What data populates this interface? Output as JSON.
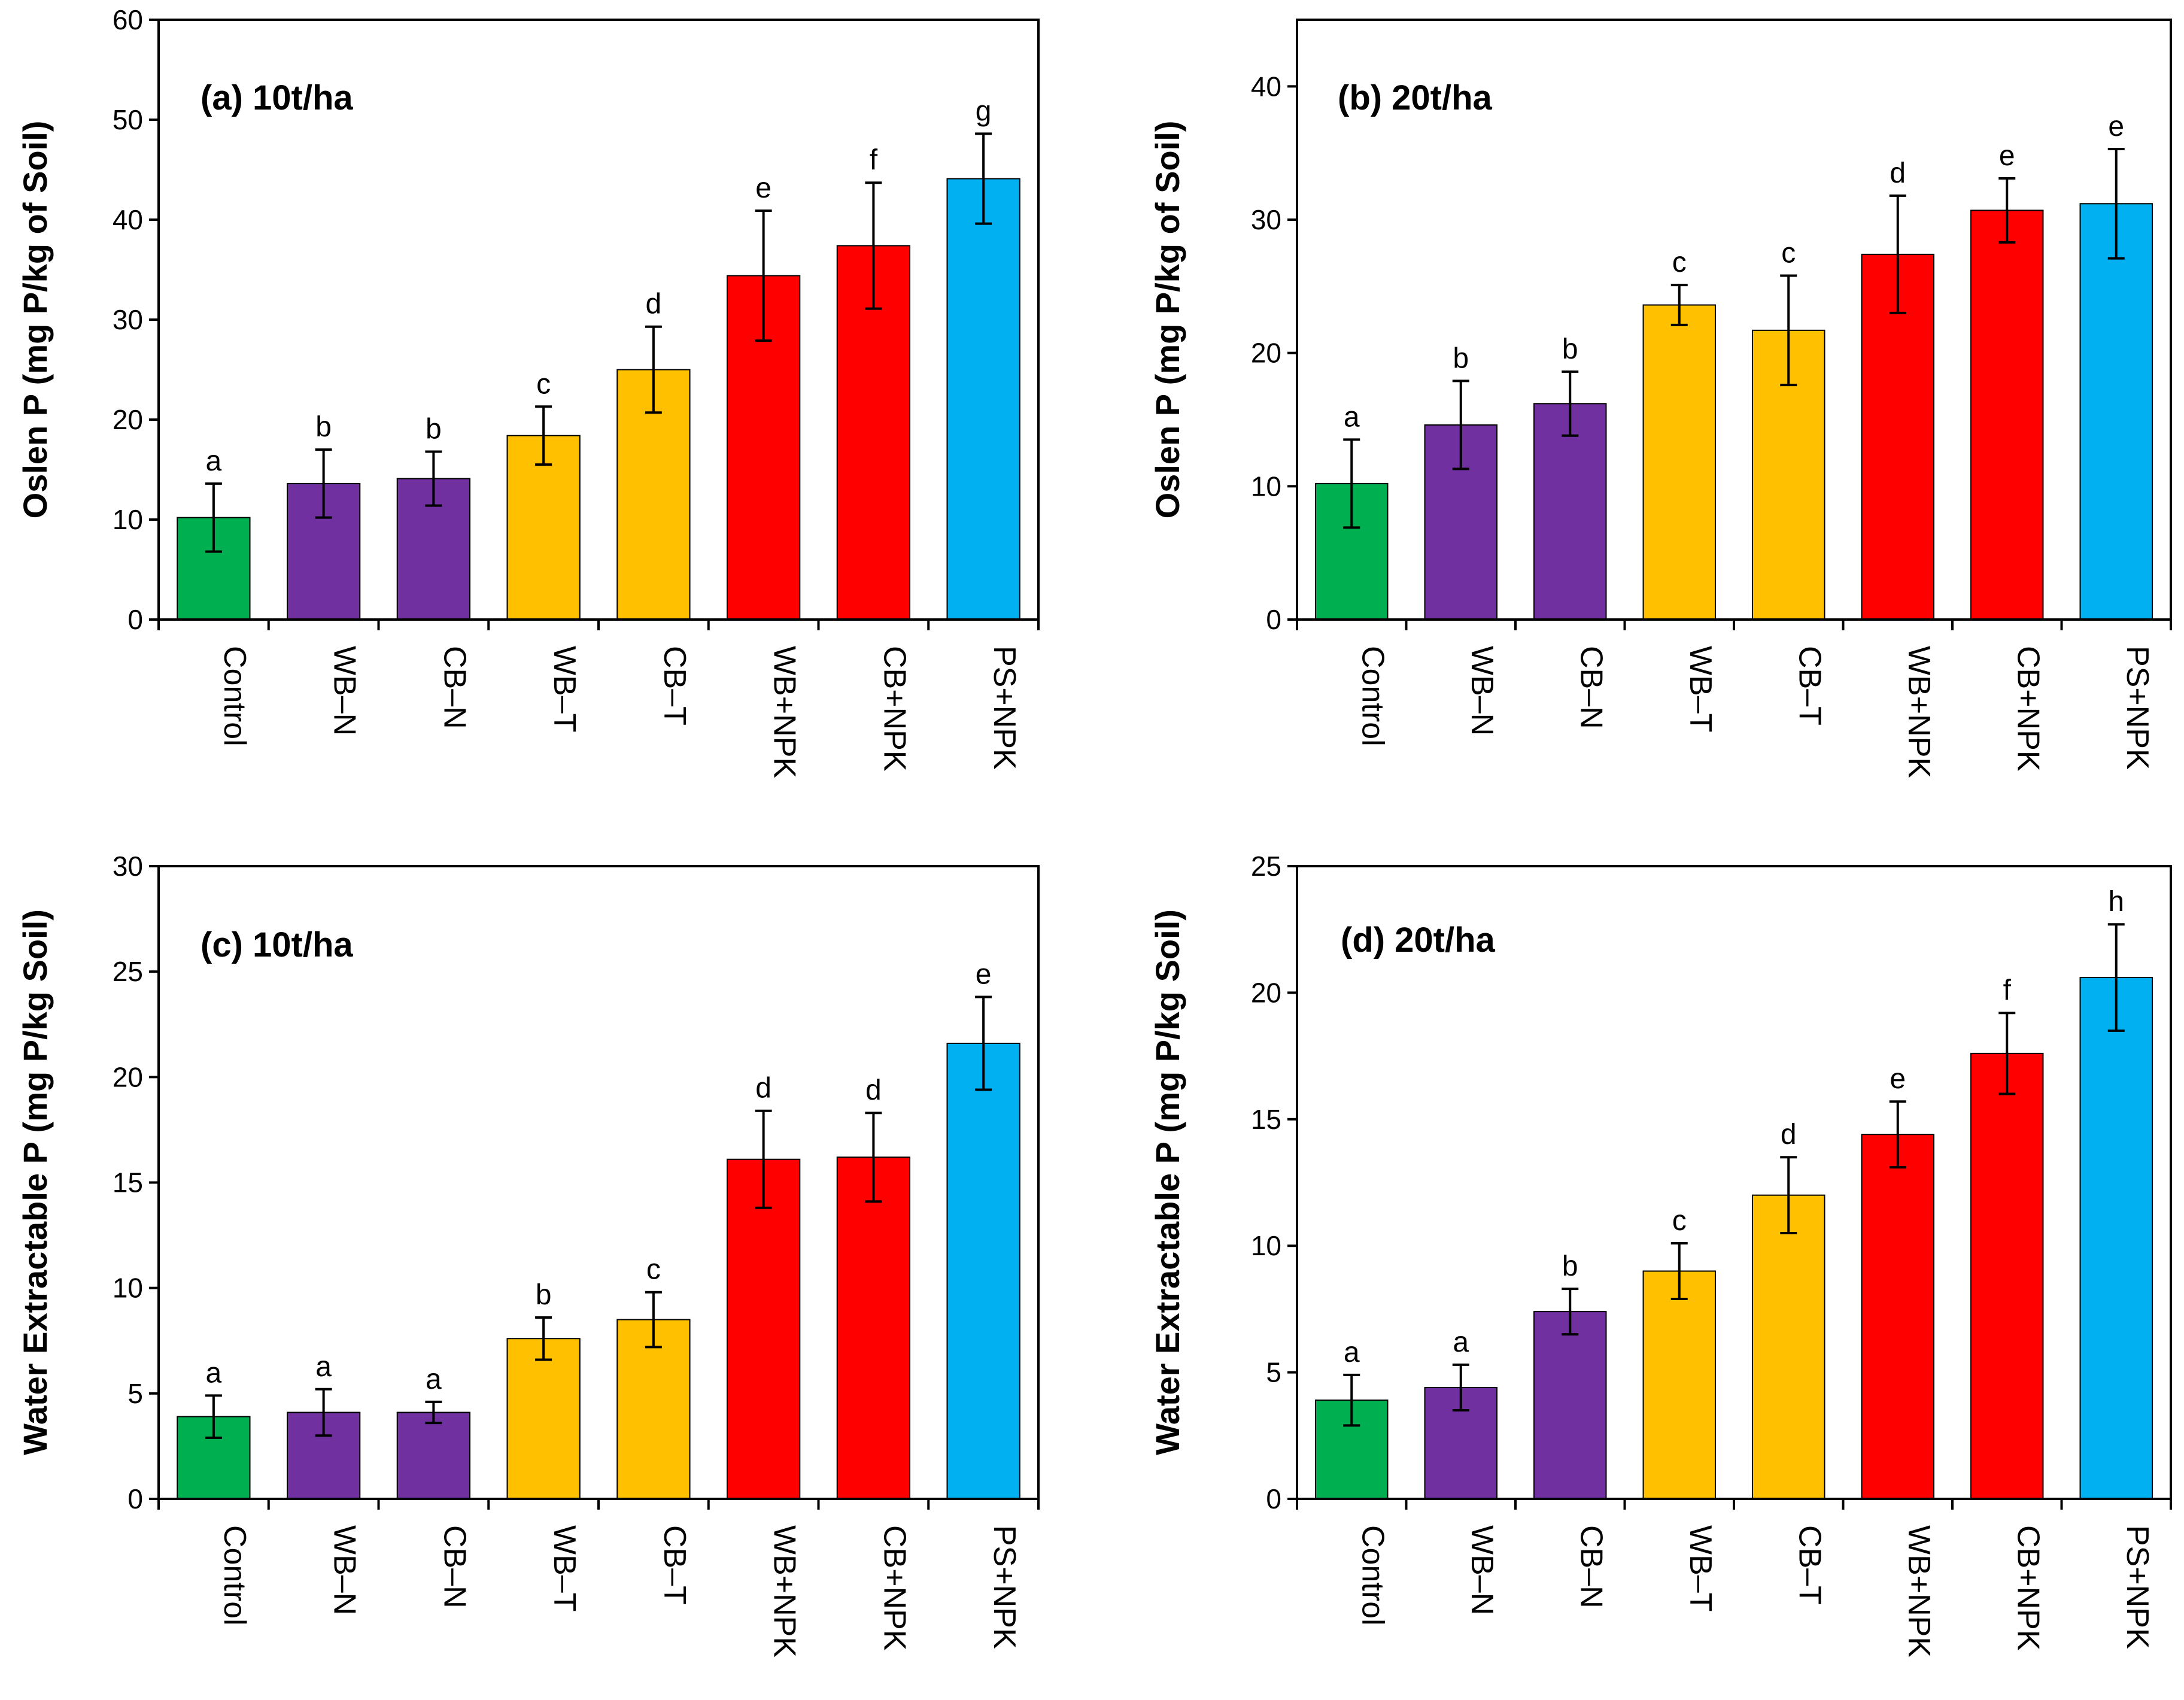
{
  "chart_data": [
    {
      "type": "bar",
      "title": "(a) 10t/ha",
      "xlabel": "",
      "ylabel": "Oslen P (mg P/kg of Soil)",
      "ylim": [
        0,
        60
      ],
      "yticks": [
        0,
        10,
        20,
        30,
        40,
        50,
        60
      ],
      "categories": [
        "Control",
        "WB–N",
        "CB–N",
        "WB–T",
        "CB–T",
        "WB+NPK",
        "CB+NPK",
        "PS+NPK"
      ],
      "values": [
        10.2,
        13.6,
        14.1,
        18.4,
        25.0,
        34.4,
        37.4,
        44.1
      ],
      "errors": [
        3.4,
        3.4,
        2.7,
        2.9,
        4.3,
        6.5,
        6.3,
        4.5
      ],
      "significance": [
        "a",
        "b",
        "b",
        "c",
        "d",
        "e",
        "f",
        "g"
      ],
      "colors": [
        "#00b050",
        "#7030a0",
        "#7030a0",
        "#ffc000",
        "#ffc000",
        "#ff0000",
        "#ff0000",
        "#00b0f0"
      ],
      "grid": false
    },
    {
      "type": "bar",
      "title": "(b) 20t/ha",
      "xlabel": "",
      "ylabel": "Oslen P (mg P/kg of Soil)",
      "ylim": [
        0,
        45
      ],
      "yticks": [
        0,
        10,
        20,
        30,
        40
      ],
      "categories": [
        "Control",
        "WB–N",
        "CB–N",
        "WB–T",
        "CB–T",
        "WB+NPK",
        "CB+NPK",
        "PS+NPK"
      ],
      "values": [
        10.2,
        14.6,
        16.2,
        23.6,
        21.7,
        27.4,
        30.7,
        31.2
      ],
      "errors": [
        3.3,
        3.3,
        2.4,
        1.5,
        4.1,
        4.4,
        2.4,
        4.1
      ],
      "significance": [
        "a",
        "b",
        "b",
        "c",
        "c",
        "d",
        "e",
        "e"
      ],
      "colors": [
        "#00b050",
        "#7030a0",
        "#7030a0",
        "#ffc000",
        "#ffc000",
        "#ff0000",
        "#ff0000",
        "#00b0f0"
      ],
      "grid": false
    },
    {
      "type": "bar",
      "title": "(c) 10t/ha",
      "xlabel": "",
      "ylabel": "Water Extractable P (mg P/kg Soil)",
      "ylim": [
        0,
        30
      ],
      "yticks": [
        0,
        5,
        10,
        15,
        20,
        25,
        30
      ],
      "categories": [
        "Control",
        "WB–N",
        "CB–N",
        "WB–T",
        "CB–T",
        "WB+NPK",
        "CB+NPK",
        "PS+NPK"
      ],
      "values": [
        3.9,
        4.1,
        4.1,
        7.6,
        8.5,
        16.1,
        16.2,
        21.6
      ],
      "errors": [
        1.0,
        1.1,
        0.5,
        1.0,
        1.3,
        2.3,
        2.1,
        2.2
      ],
      "significance": [
        "a",
        "a",
        "a",
        "b",
        "c",
        "d",
        "d",
        "e"
      ],
      "colors": [
        "#00b050",
        "#7030a0",
        "#7030a0",
        "#ffc000",
        "#ffc000",
        "#ff0000",
        "#ff0000",
        "#00b0f0"
      ],
      "grid": false
    },
    {
      "type": "bar",
      "title": "(d) 20t/ha",
      "xlabel": "",
      "ylabel": "Water Extractable P (mg P/kg Soil)",
      "ylim": [
        0,
        25
      ],
      "yticks": [
        0,
        5,
        10,
        15,
        20,
        25
      ],
      "categories": [
        "Control",
        "WB–N",
        "CB–N",
        "WB–T",
        "CB–T",
        "WB+NPK",
        "CB+NPK",
        "PS+NPK"
      ],
      "values": [
        3.9,
        4.4,
        7.4,
        9.0,
        12.0,
        14.4,
        17.6,
        20.6
      ],
      "errors": [
        1.0,
        0.9,
        0.9,
        1.1,
        1.5,
        1.3,
        1.6,
        2.1
      ],
      "significance": [
        "a",
        "a",
        "b",
        "c",
        "d",
        "e",
        "f",
        "h"
      ],
      "colors": [
        "#00b050",
        "#7030a0",
        "#7030a0",
        "#ffc000",
        "#ffc000",
        "#ff0000",
        "#ff0000",
        "#00b0f0"
      ],
      "grid": false
    }
  ]
}
